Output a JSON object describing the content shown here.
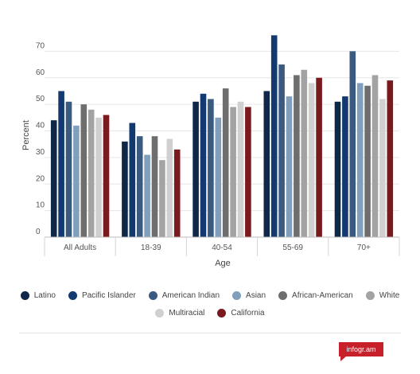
{
  "chart_data": {
    "type": "bar",
    "xlabel": "Age",
    "ylabel": "Percent",
    "ylim": [
      0,
      80
    ],
    "yticks": [
      0,
      10,
      20,
      30,
      40,
      50,
      60,
      70
    ],
    "grid": true,
    "legend_position": "bottom",
    "categories": [
      "All Adults",
      "18-39",
      "40-54",
      "55-69",
      "70+"
    ],
    "series": [
      {
        "name": "Latino",
        "color": "#0f2847",
        "values": [
          44,
          36,
          51,
          55,
          51
        ]
      },
      {
        "name": "Pacific Islander",
        "color": "#123a70",
        "values": [
          55,
          43,
          54,
          76,
          53
        ]
      },
      {
        "name": "American Indian",
        "color": "#3a5a80",
        "values": [
          51,
          38,
          52,
          65,
          70
        ]
      },
      {
        "name": "Asian",
        "color": "#7f9fbd",
        "values": [
          42,
          31,
          45,
          53,
          58
        ]
      },
      {
        "name": "African-American",
        "color": "#6e6e6e",
        "values": [
          50,
          38,
          56,
          61,
          57
        ]
      },
      {
        "name": "White",
        "color": "#a3a3a3",
        "values": [
          48,
          29,
          49,
          63,
          61
        ]
      },
      {
        "name": "Multiracial",
        "color": "#d0d0d0",
        "values": [
          45,
          37,
          51,
          58,
          52
        ]
      },
      {
        "name": "California",
        "color": "#7a1a1f",
        "values": [
          46,
          33,
          49,
          60,
          59
        ]
      }
    ]
  },
  "legend": {
    "row1": [
      "Latino",
      "Pacific Islander",
      "American Indian",
      "Asian",
      "African-American",
      "White"
    ],
    "row2": [
      "Multiracial",
      "California"
    ]
  },
  "brand": {
    "label": "infogr.am"
  }
}
